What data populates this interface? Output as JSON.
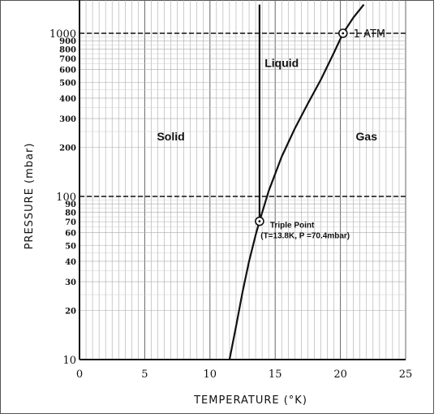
{
  "chart_data": {
    "type": "line",
    "title": "",
    "xlabel": "TEMPERATURE (°K)",
    "ylabel": "PRESSURE (mbar)",
    "xlim": [
      0,
      25
    ],
    "ylim": [
      10,
      1500
    ],
    "yscale": "log",
    "grid": true,
    "x_ticks": [
      "0",
      "5",
      "10",
      "15",
      "20",
      "25"
    ],
    "y_ticks": [
      {
        "value": 10,
        "label": "10",
        "major": true
      },
      {
        "value": 20,
        "label": "20",
        "major": false
      },
      {
        "value": 30,
        "label": "30",
        "major": false
      },
      {
        "value": 40,
        "label": "40",
        "major": false
      },
      {
        "value": 50,
        "label": "50",
        "major": false
      },
      {
        "value": 60,
        "label": "60",
        "major": false
      },
      {
        "value": 70,
        "label": "70",
        "major": false
      },
      {
        "value": 80,
        "label": "80",
        "major": false
      },
      {
        "value": 90,
        "label": "90",
        "major": false
      },
      {
        "value": 100,
        "label": "100",
        "major": true
      },
      {
        "value": 200,
        "label": "200",
        "major": false
      },
      {
        "value": 300,
        "label": "300",
        "major": false
      },
      {
        "value": 400,
        "label": "400",
        "major": false
      },
      {
        "value": 500,
        "label": "500",
        "major": false
      },
      {
        "value": 600,
        "label": "600",
        "major": false
      },
      {
        "value": 700,
        "label": "700",
        "major": false
      },
      {
        "value": 800,
        "label": "800",
        "major": false
      },
      {
        "value": 900,
        "label": "900",
        "major": false
      },
      {
        "value": 1000,
        "label": "1000",
        "major": true
      }
    ],
    "series": [
      {
        "x": [
          11.5,
          12.0,
          12.5,
          13.0,
          13.5,
          13.8
        ],
        "y": [
          10,
          16,
          26,
          40,
          58,
          70.4
        ]
      },
      {
        "x": [
          13.8,
          14.5,
          15.5,
          16.5,
          17.5,
          18.5,
          19.5,
          20.2,
          21.0,
          21.8
        ],
        "y": [
          70.4,
          108,
          175,
          260,
          370,
          520,
          760,
          1000,
          1250,
          1500
        ]
      },
      {
        "x": [
          13.8,
          13.8
        ],
        "y": [
          70.4,
          1500
        ]
      }
    ],
    "regions": [
      {
        "label": "Solid",
        "x": 7.0,
        "y": 220
      },
      {
        "label": "Liquid",
        "x": 15.5,
        "y": 620
      },
      {
        "label": "Gas",
        "x": 22.0,
        "y": 220
      }
    ],
    "reference_lines": [
      {
        "axis": "y",
        "value": 1000,
        "label": "1 ATM"
      },
      {
        "axis": "y",
        "value": 100,
        "label": ""
      }
    ],
    "points": [
      {
        "x": 13.8,
        "y": 70.4,
        "label": "Triple Point",
        "sublabel": "(T=13.8K, P =70.4mbar)"
      },
      {
        "x": 20.2,
        "y": 1000,
        "label": "",
        "sublabel": ""
      }
    ]
  }
}
